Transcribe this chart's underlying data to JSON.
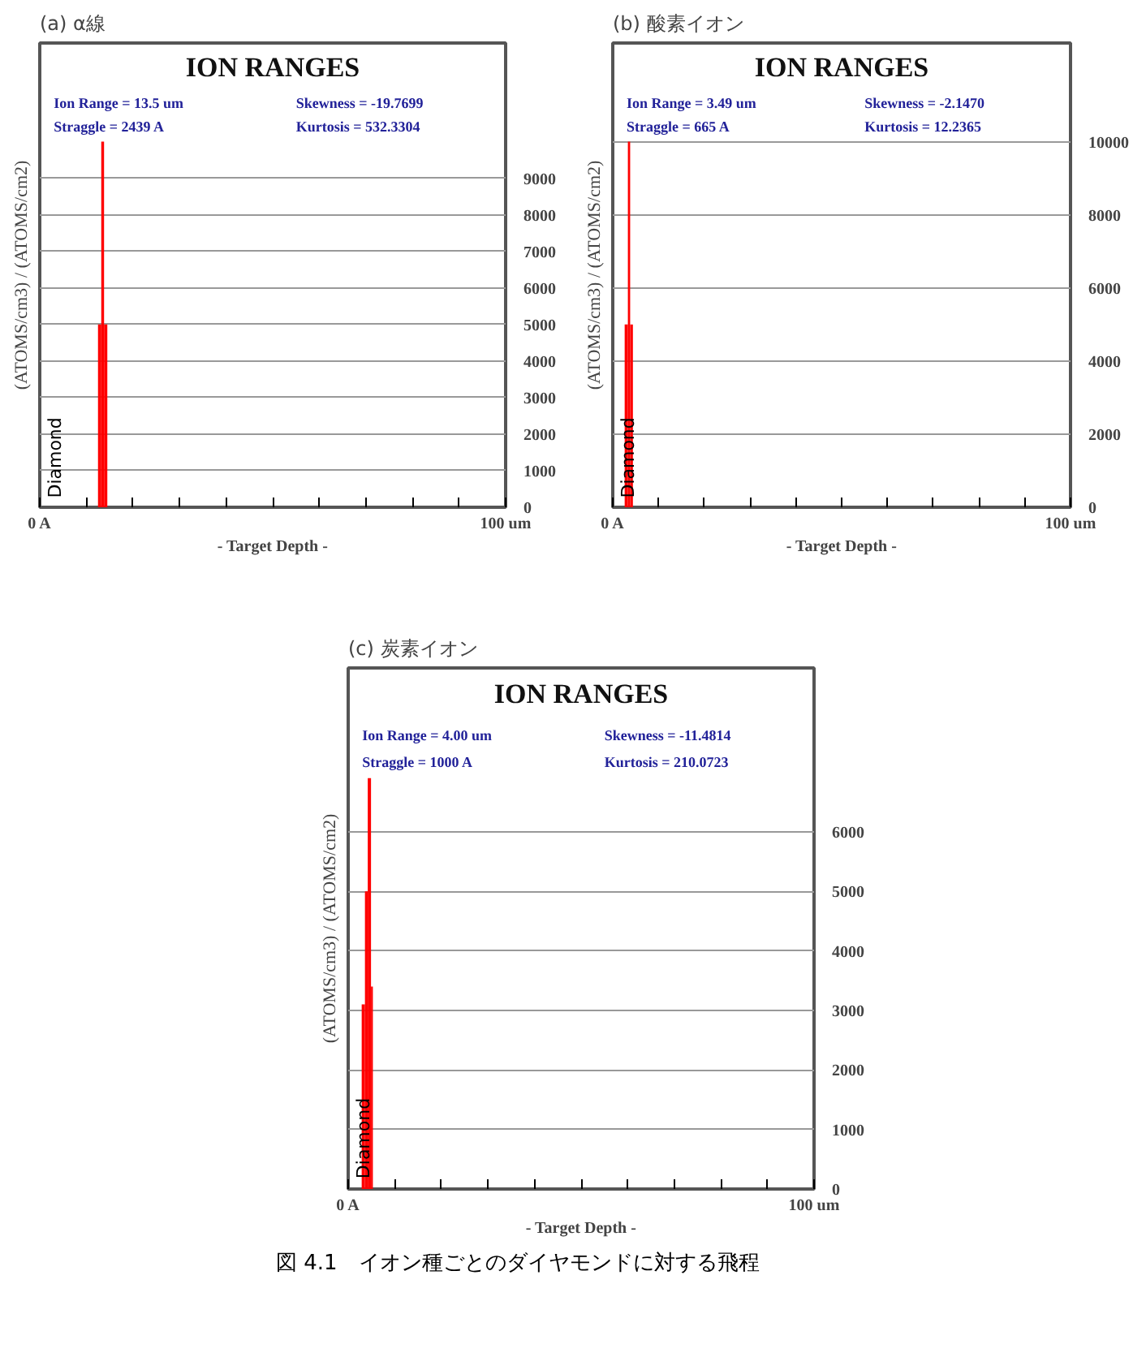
{
  "chart_data": [
    {
      "type": "histogram",
      "title": "ION RANGES",
      "xlabel": "- Target Depth -",
      "ylabel": "(ATOMS/cm3) / (ATOMS/cm2)",
      "annotations": [
        "(a) α線",
        "Ion Range   = 13.5 um",
        "Straggle     = 2439 A",
        "Skewness    = -19.7699",
        "Kurtosis     = 532.3304",
        "Diamond"
      ],
      "bins": [
        12.5,
        13.2,
        13.8,
        14.5
      ],
      "values": [
        5000,
        10000,
        5000
      ],
      "color": "#ff0000",
      "xlim": [
        0,
        100
      ],
      "xticks": [
        {
          "value": 0,
          "label": "0 A"
        },
        {
          "value": 10,
          "label": null
        },
        {
          "value": 20,
          "label": null
        },
        {
          "value": 30,
          "label": null
        },
        {
          "value": 40,
          "label": null
        },
        {
          "value": 50,
          "label": null
        },
        {
          "value": 60,
          "label": null
        },
        {
          "value": 70,
          "label": null
        },
        {
          "value": 80,
          "label": null
        },
        {
          "value": 90,
          "label": null
        },
        {
          "value": 100,
          "label": "100 um"
        }
      ],
      "ylim": [
        0,
        12700
      ],
      "yticks": [
        0,
        1000,
        2000,
        3000,
        4000,
        5000,
        6000,
        7000,
        8000,
        9000
      ],
      "grid": "y"
    },
    {
      "type": "histogram",
      "title": "ION RANGES",
      "xlabel": "- Target Depth -",
      "ylabel": "(ATOMS/cm3) / (ATOMS/cm2)",
      "annotations": [
        "(b) 酸素イオン",
        "Ion Range   = 3.49 um",
        "Straggle     =  665 A",
        "Skewness    = -2.1470",
        "Kurtosis     = 12.2365",
        "Diamond"
      ],
      "bins": [
        2.6,
        3.3,
        3.8,
        4.4
      ],
      "values": [
        5000,
        10000,
        5000
      ],
      "color": "#ff0000",
      "xlim": [
        0,
        100
      ],
      "xticks": [
        {
          "value": 0,
          "label": "0 A"
        },
        {
          "value": 10,
          "label": null
        },
        {
          "value": 20,
          "label": null
        },
        {
          "value": 30,
          "label": null
        },
        {
          "value": 40,
          "label": null
        },
        {
          "value": 50,
          "label": null
        },
        {
          "value": 60,
          "label": null
        },
        {
          "value": 70,
          "label": null
        },
        {
          "value": 80,
          "label": null
        },
        {
          "value": 90,
          "label": null
        },
        {
          "value": 100,
          "label": "100 um"
        }
      ],
      "ylim": [
        0,
        12700
      ],
      "yticks": [
        0,
        2000,
        4000,
        6000,
        8000,
        10000
      ],
      "grid": "y"
    },
    {
      "type": "histogram",
      "title": "ION RANGES",
      "xlabel": "- Target Depth -",
      "ylabel": "(ATOMS/cm3) / (ATOMS/cm2)",
      "annotations": [
        "(c) 炭素イオン",
        "Ion Range   = 4.00 um",
        "Straggle     = 1000 A",
        "Skewness    = -11.4814",
        "Kurtosis     = 210.0723",
        "Diamond",
        "図 4.1　イオン種ごとのダイヤモンドに対する飛程"
      ],
      "bins": [
        2.9,
        3.6,
        4.2,
        4.9,
        5.3
      ],
      "values": [
        3100,
        5000,
        6900,
        3400
      ],
      "color": "#ff0000",
      "xlim": [
        0,
        100
      ],
      "xticks": [
        {
          "value": 0,
          "label": "0 A"
        },
        {
          "value": 10,
          "label": null
        },
        {
          "value": 20,
          "label": null
        },
        {
          "value": 30,
          "label": null
        },
        {
          "value": 40,
          "label": null
        },
        {
          "value": 50,
          "label": null
        },
        {
          "value": 60,
          "label": null
        },
        {
          "value": 70,
          "label": null
        },
        {
          "value": 80,
          "label": null
        },
        {
          "value": 90,
          "label": null
        },
        {
          "value": 100,
          "label": "100 um"
        }
      ],
      "ylim": [
        0,
        8750
      ],
      "yticks": [
        0,
        1000,
        2000,
        3000,
        4000,
        5000,
        6000
      ],
      "grid": "y"
    }
  ]
}
